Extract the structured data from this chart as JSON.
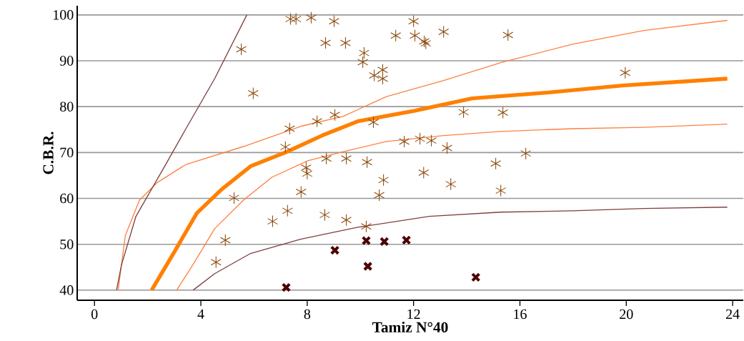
{
  "chart_data": {
    "type": "scatter",
    "xlabel": "Tamiz N°40",
    "ylabel": "C.B.R.",
    "xlim": [
      -0.65,
      24.4
    ],
    "ylim": [
      37.8,
      102
    ],
    "xticks": [
      0,
      4,
      8,
      12,
      16,
      20,
      24
    ],
    "yticks": [
      40,
      50,
      60,
      70,
      80,
      90,
      100
    ],
    "grid": "y",
    "series": [
      {
        "color": "#8b4a0c",
        "x": [
          5.52,
          5.97,
          7.37,
          7.58,
          8.15,
          9.01,
          8.69,
          9.44,
          9.04,
          8.37,
          7.34,
          7.18,
          7.96,
          8.0,
          7.77,
          5.25,
          4.92,
          4.57,
          7.26,
          6.7,
          8.72,
          9.47,
          8.66,
          9.47,
          10.25,
          10.87,
          10.71,
          12.38,
          13.4,
          15.09,
          15.28,
          16.22,
          13.26,
          10.22,
          10.14,
          10.09,
          10.52,
          10.84,
          10.84,
          11.33,
          12.0,
          12.05,
          12.4,
          12.46,
          13.13,
          15.55,
          10.49,
          13.88,
          15.36,
          11.65,
          12.24,
          12.67,
          19.96
        ],
        "values": [
          92.5,
          82.9,
          99.1,
          99.1,
          99.4,
          98.6,
          93.9,
          93.9,
          78.2,
          76.8,
          75.2,
          71.2,
          66.7,
          65.4,
          61.4,
          60.1,
          50.9,
          46.1,
          57.3,
          55.0,
          68.7,
          68.7,
          56.4,
          55.3,
          67.9,
          64.0,
          60.7,
          65.6,
          63.1,
          67.6,
          61.7,
          69.8,
          71.0,
          53.9,
          91.7,
          89.7,
          86.8,
          88.0,
          86.1,
          95.5,
          98.6,
          95.5,
          94.2,
          93.8,
          96.3,
          95.6,
          76.6,
          78.8,
          78.7,
          72.4,
          73.0,
          72.6,
          87.4
        ]
      },
      {
        "marker": "cross",
        "color": "#4d0000",
        "x": [
          9.04,
          7.21,
          10.22,
          10.9,
          11.73,
          10.28,
          14.34
        ],
        "values": [
          48.7,
          40.6,
          50.8,
          50.6,
          50.9,
          45.2,
          42.8
        ]
      },
      {
        "type": "line",
        "marker": "none",
        "color": "#ff8000",
        "x": [
          2.15,
          3.04,
          3.85,
          4.79,
          5.87,
          7.21,
          8.56,
          9.9,
          12.05,
          14.2,
          16.9,
          19.85,
          23.8
        ],
        "values": [
          40,
          48.7,
          56.8,
          62.0,
          67.0,
          70.1,
          73.7,
          76.8,
          79.1,
          81.8,
          83.0,
          84.6,
          86.1
        ]
      },
      {
        "type": "line",
        "marker": "none",
        "color": "#ff8040",
        "x": [
          0.89,
          1.16,
          1.69,
          2.37,
          3.44,
          5.6,
          7.75,
          9.36,
          10.98,
          13.13,
          15.28,
          17.97,
          20.66,
          23.8
        ],
        "values": [
          40,
          51.9,
          59.6,
          63.5,
          67.4,
          71.3,
          75.7,
          77.9,
          82.2,
          85.7,
          89.6,
          93.6,
          96.6,
          98.8
        ]
      },
      {
        "type": "line",
        "marker": "none",
        "color": "#ff8040",
        "x": [
          3.09,
          3.71,
          4.52,
          5.6,
          6.67,
          8.02,
          9.36,
          10.98,
          13.13,
          15.28,
          17.97,
          20.66,
          23.8
        ],
        "values": [
          40,
          45.6,
          53.4,
          59.6,
          64.6,
          68.2,
          70.2,
          72.4,
          73.7,
          74.6,
          75.2,
          75.5,
          76.2
        ]
      },
      {
        "type": "line",
        "marker": "none",
        "color": "#7f3f3f",
        "x": [
          0.83,
          1.02,
          1.56,
          2.64,
          3.44,
          4.52,
          5.73
        ],
        "values": [
          40,
          45.6,
          56.1,
          67.0,
          75.2,
          86.1,
          100
        ]
      },
      {
        "type": "line",
        "marker": "none",
        "color": "#7f3f3f",
        "x": [
          3.71,
          4.52,
          5.87,
          7.75,
          9.9,
          12.59,
          15.28,
          17.97,
          20.66,
          23.8
        ],
        "values": [
          40,
          43.6,
          48.0,
          51.1,
          53.7,
          56.1,
          57.0,
          57.3,
          57.8,
          58.1
        ]
      }
    ]
  }
}
